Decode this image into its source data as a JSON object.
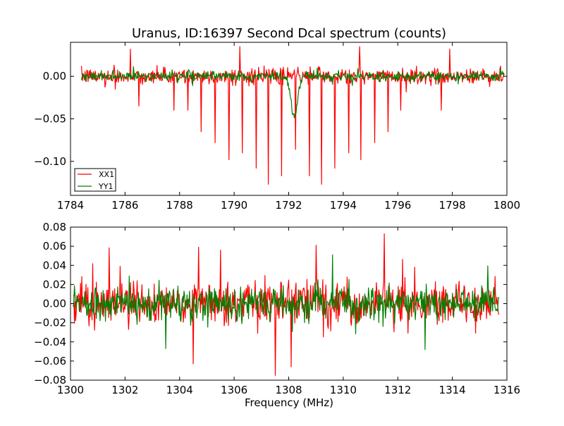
{
  "chart_data": [
    {
      "type": "line",
      "title": "Uranus, ID:16397 Second Dcal spectrum (counts)",
      "xlabel": "",
      "ylabel": "",
      "xlim": [
        1784,
        1800
      ],
      "ylim": [
        -0.14,
        0.04
      ],
      "xticks": [
        1784,
        1786,
        1788,
        1790,
        1792,
        1794,
        1796,
        1798,
        1800
      ],
      "yticks": [
        0.0,
        -0.05,
        -0.1
      ],
      "ytick_labels": [
        "0.00",
        "−0.05",
        "−0.10"
      ],
      "legend_position": "lower-left",
      "series": [
        {
          "name": "XX1",
          "color": "#ff0000",
          "x_range": [
            1784.4,
            1799.9
          ],
          "noise_amplitude": 0.008,
          "spikes": [
            {
              "x": 1786.5,
              "y": -0.035
            },
            {
              "x": 1787.8,
              "y": -0.04
            },
            {
              "x": 1788.3,
              "y": -0.04
            },
            {
              "x": 1788.8,
              "y": -0.065
            },
            {
              "x": 1789.3,
              "y": -0.078
            },
            {
              "x": 1789.8,
              "y": -0.098
            },
            {
              "x": 1790.3,
              "y": -0.09
            },
            {
              "x": 1790.8,
              "y": -0.108
            },
            {
              "x": 1791.25,
              "y": -0.127
            },
            {
              "x": 1791.75,
              "y": -0.117
            },
            {
              "x": 1792.25,
              "y": -0.086
            },
            {
              "x": 1792.75,
              "y": -0.117
            },
            {
              "x": 1793.2,
              "y": -0.127
            },
            {
              "x": 1793.7,
              "y": -0.108
            },
            {
              "x": 1794.2,
              "y": -0.09
            },
            {
              "x": 1794.65,
              "y": -0.098
            },
            {
              "x": 1795.15,
              "y": -0.078
            },
            {
              "x": 1795.65,
              "y": -0.065
            },
            {
              "x": 1796.1,
              "y": -0.04
            },
            {
              "x": 1797.6,
              "y": -0.04
            },
            {
              "x": 1786.2,
              "y": 0.032
            },
            {
              "x": 1790.2,
              "y": 0.035
            },
            {
              "x": 1794.6,
              "y": 0.035
            },
            {
              "x": 1797.9,
              "y": 0.032
            }
          ]
        },
        {
          "name": "YY1",
          "color": "#008000",
          "x_range": [
            1784.4,
            1799.9
          ],
          "noise_amplitude": 0.005,
          "dip": {
            "x": 1792.2,
            "y": -0.046,
            "width": 0.35
          }
        }
      ]
    },
    {
      "type": "line",
      "title": "",
      "xlabel": "Frequency (MHz)",
      "ylabel": "",
      "xlim": [
        1300,
        1316
      ],
      "ylim": [
        -0.08,
        0.08
      ],
      "xticks": [
        1300,
        1302,
        1304,
        1306,
        1308,
        1310,
        1312,
        1314,
        1316
      ],
      "yticks": [
        0.08,
        0.06,
        0.04,
        0.02,
        0.0,
        -0.02,
        -0.04,
        -0.06,
        -0.08
      ],
      "ytick_labels": [
        "0.08",
        "0.06",
        "0.04",
        "0.02",
        "0.00",
        "−0.02",
        "−0.04",
        "−0.06",
        "−0.08"
      ],
      "series": [
        {
          "name": "XX1",
          "color": "#ff0000",
          "x_range": [
            1300.1,
            1315.7
          ],
          "noise_amplitude": 0.02,
          "spikes": [
            {
              "x": 1311.5,
              "y": 0.073
            },
            {
              "x": 1307.5,
              "y": -0.075
            },
            {
              "x": 1308.1,
              "y": -0.066
            },
            {
              "x": 1304.5,
              "y": -0.063
            },
            {
              "x": 1305.5,
              "y": 0.056
            },
            {
              "x": 1304.7,
              "y": 0.059
            },
            {
              "x": 1309.0,
              "y": 0.061
            }
          ]
        },
        {
          "name": "YY1",
          "color": "#008000",
          "x_range": [
            1300.1,
            1315.7
          ],
          "noise_amplitude": 0.015,
          "spikes": [
            {
              "x": 1309.6,
              "y": 0.051
            },
            {
              "x": 1313.0,
              "y": -0.048
            },
            {
              "x": 1303.5,
              "y": -0.047
            }
          ]
        }
      ]
    }
  ]
}
